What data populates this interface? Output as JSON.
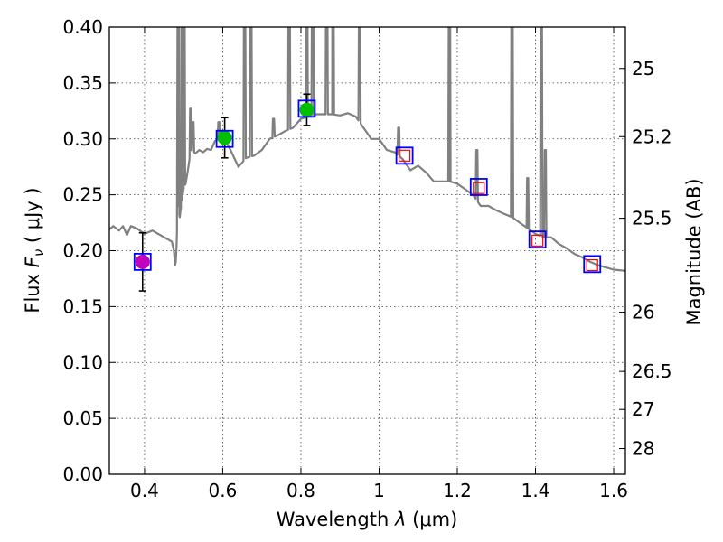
{
  "chart_data": {
    "type": "scatter",
    "title": "",
    "xlabel": "Wavelength",
    "xlabel_symbol": "λ",
    "xlabel_unit": "(μm)",
    "ylabel": "Flux",
    "ylabel_symbol": "F",
    "ylabel_subscript": "ν",
    "ylabel_unit": "( μJy )",
    "y2label": "Magnitude (AB)",
    "xlim": [
      0.31,
      1.63
    ],
    "ylim": [
      0.0,
      0.4
    ],
    "grid": true,
    "x_ticks": [
      0.4,
      0.6,
      0.8,
      1.0,
      1.2,
      1.4,
      1.6
    ],
    "x_tick_labels": [
      "0.4",
      "0.6",
      "0.8",
      "1",
      "1.2",
      "1.4",
      "1.6"
    ],
    "y_ticks": [
      0.0,
      0.05,
      0.1,
      0.15,
      0.2,
      0.25,
      0.3,
      0.35,
      0.4
    ],
    "y_tick_labels": [
      "0.00",
      "0.05",
      "0.10",
      "0.15",
      "0.20",
      "0.25",
      "0.30",
      "0.35",
      "0.40"
    ],
    "y2_ticks": [
      {
        "label": "25",
        "flux": 0.363
      },
      {
        "label": "25.2",
        "flux": 0.302
      },
      {
        "label": "25.5",
        "flux": 0.229
      },
      {
        "label": "26",
        "flux": 0.145
      },
      {
        "label": "26.5",
        "flux": 0.092
      },
      {
        "label": "27",
        "flux": 0.058
      },
      {
        "label": "28",
        "flux": 0.023
      }
    ],
    "colors": {
      "model": "#808080",
      "purple": "#bf00bf",
      "green": "#00bf00",
      "square_edge": "#0000ff",
      "inner_square": "#ff0000",
      "errorbar": "#000000"
    },
    "series": [
      {
        "name": "observed photometry",
        "points": [
          {
            "x": 0.395,
            "y": 0.19,
            "err": 0.026,
            "color": "purple"
          },
          {
            "x": 0.605,
            "y": 0.301,
            "err": 0.018,
            "color": "green"
          },
          {
            "x": 0.815,
            "y": 0.326,
            "err": 0.014,
            "color": "green"
          }
        ]
      },
      {
        "name": "model photometry",
        "points": [
          {
            "x": 0.395,
            "y": 0.19
          },
          {
            "x": 0.605,
            "y": 0.3
          },
          {
            "x": 0.815,
            "y": 0.327
          },
          {
            "x": 1.065,
            "y": 0.285
          },
          {
            "x": 1.255,
            "y": 0.257
          },
          {
            "x": 1.405,
            "y": 0.21
          },
          {
            "x": 1.545,
            "y": 0.188
          }
        ]
      },
      {
        "name": "upper limits",
        "points": [
          {
            "x": 1.065,
            "y": 0.285
          },
          {
            "x": 1.255,
            "y": 0.256
          },
          {
            "x": 1.405,
            "y": 0.209
          },
          {
            "x": 1.545,
            "y": 0.187
          }
        ]
      },
      {
        "name": "model spectrum",
        "x": [
          0.31,
          0.32,
          0.335,
          0.345,
          0.355,
          0.365,
          0.38,
          0.4,
          0.42,
          0.44,
          0.46,
          0.47,
          0.475,
          0.478,
          0.48,
          0.482,
          0.485,
          0.49,
          0.495,
          0.5,
          0.505,
          0.51,
          0.515,
          0.52,
          0.53,
          0.54,
          0.55,
          0.56,
          0.57,
          0.58,
          0.6,
          0.62,
          0.64,
          0.66,
          0.68,
          0.7,
          0.72,
          0.74,
          0.76,
          0.78,
          0.8,
          0.82,
          0.84,
          0.86,
          0.88,
          0.9,
          0.92,
          0.94,
          0.96,
          0.98,
          1.0,
          1.02,
          1.04,
          1.06,
          1.08,
          1.1,
          1.12,
          1.14,
          1.16,
          1.18,
          1.2,
          1.22,
          1.24,
          1.26,
          1.28,
          1.3,
          1.32,
          1.34,
          1.36,
          1.38,
          1.4,
          1.42,
          1.44,
          1.46,
          1.48,
          1.5,
          1.52,
          1.54,
          1.56,
          1.58,
          1.6,
          1.63
        ],
        "y": [
          0.219,
          0.222,
          0.218,
          0.222,
          0.214,
          0.222,
          0.22,
          0.215,
          0.218,
          0.214,
          0.21,
          0.208,
          0.2,
          0.187,
          0.19,
          0.205,
          0.24,
          0.23,
          0.245,
          0.255,
          0.26,
          0.27,
          0.282,
          0.29,
          0.287,
          0.29,
          0.288,
          0.291,
          0.29,
          0.298,
          0.303,
          0.29,
          0.275,
          0.283,
          0.285,
          0.29,
          0.3,
          0.303,
          0.307,
          0.31,
          0.318,
          0.32,
          0.322,
          0.322,
          0.322,
          0.321,
          0.323,
          0.32,
          0.31,
          0.3,
          0.3,
          0.29,
          0.288,
          0.282,
          0.272,
          0.276,
          0.27,
          0.262,
          0.262,
          0.262,
          0.26,
          0.255,
          0.25,
          0.24,
          0.24,
          0.236,
          0.233,
          0.23,
          0.225,
          0.22,
          0.215,
          0.212,
          0.212,
          0.206,
          0.202,
          0.197,
          0.194,
          0.19,
          0.187,
          0.185,
          0.183,
          0.182
        ]
      },
      {
        "name": "emission spikes",
        "lines": [
          {
            "x": 0.486,
            "y": 0.45
          },
          {
            "x": 0.496,
            "y": 0.45
          },
          {
            "x": 0.501,
            "y": 0.45
          },
          {
            "x": 0.518,
            "y": 0.327
          },
          {
            "x": 0.524,
            "y": 0.315
          },
          {
            "x": 0.59,
            "y": 0.315
          },
          {
            "x": 0.656,
            "y": 0.45
          },
          {
            "x": 0.672,
            "y": 0.45
          },
          {
            "x": 0.73,
            "y": 0.318
          },
          {
            "x": 0.77,
            "y": 0.45
          },
          {
            "x": 0.815,
            "y": 0.45
          },
          {
            "x": 0.83,
            "y": 0.45
          },
          {
            "x": 0.866,
            "y": 0.45
          },
          {
            "x": 0.882,
            "y": 0.45
          },
          {
            "x": 0.95,
            "y": 0.42
          },
          {
            "x": 1.05,
            "y": 0.31
          },
          {
            "x": 1.18,
            "y": 0.45
          },
          {
            "x": 1.25,
            "y": 0.29
          },
          {
            "x": 1.34,
            "y": 0.45
          },
          {
            "x": 1.38,
            "y": 0.265
          },
          {
            "x": 1.415,
            "y": 0.45
          },
          {
            "x": 1.425,
            "y": 0.29
          }
        ]
      }
    ]
  }
}
